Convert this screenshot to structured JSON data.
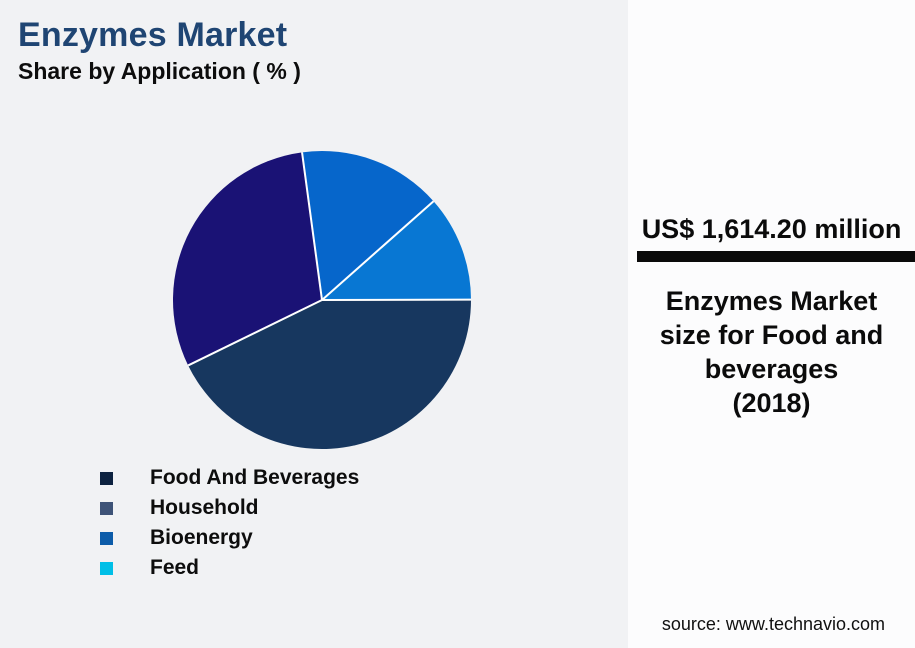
{
  "page": {
    "background_color": "#F1F2F4",
    "panel_background_color": "#FCFCFD"
  },
  "header": {
    "title": "Enzymes Market",
    "title_color": "#1F4573",
    "subtitle": "Share by Application ( % )"
  },
  "chart_data": {
    "type": "pie",
    "title": "Enzymes Market",
    "subtitle": "Share by Application ( % )",
    "unit": "%",
    "start_angle_deg": -7.7,
    "slice_border_color": "#FFFFFF",
    "slices_clockwise_from_top": [
      {
        "label": "Bioenergy",
        "value": 15.6,
        "color": "#0666CB"
      },
      {
        "label": "Feed",
        "value": 11.5,
        "color": "#0877D3"
      },
      {
        "label": "Food And Beverages",
        "value": 42.8,
        "color": "#17375F"
      },
      {
        "label": "Household",
        "value": 30.1,
        "color": "#1A1275"
      }
    ],
    "legend_position": "bottom-left",
    "legend": [
      {
        "label": "Food And Beverages",
        "swatch_color": "#0D2240"
      },
      {
        "label": "Household",
        "swatch_color": "#3E5377"
      },
      {
        "label": "Bioenergy",
        "swatch_color": "#0D5CA9"
      },
      {
        "label": "Feed",
        "swatch_color": "#00BFE7"
      }
    ]
  },
  "panel": {
    "value": "US$ 1,614.20 million",
    "divider_color": "#0A0A0A",
    "caption_lines": [
      "Enzymes Market",
      "size for Food and",
      "beverages",
      "(2018)"
    ],
    "caption": "Enzymes Market size for Food and beverages (2018)",
    "source": "source: www.technavio.com"
  }
}
